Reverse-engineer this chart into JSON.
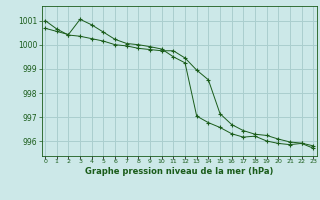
{
  "title": "Graphe pression niveau de la mer (hPa)",
  "background_color": "#cce8e8",
  "grid_color": "#aacece",
  "line_color": "#1a5c1a",
  "x_labels": [
    "0",
    "1",
    "2",
    "3",
    "4",
    "5",
    "6",
    "7",
    "8",
    "9",
    "10",
    "11",
    "12",
    "13",
    "14",
    "15",
    "16",
    "17",
    "18",
    "19",
    "20",
    "21",
    "22",
    "23"
  ],
  "ylim": [
    995.4,
    1001.6
  ],
  "yticks": [
    996,
    997,
    998,
    999,
    1000,
    1001
  ],
  "series1": [
    1001.0,
    1000.65,
    1000.4,
    1000.35,
    1000.25,
    1000.15,
    1000.0,
    999.95,
    999.85,
    999.8,
    999.75,
    999.75,
    999.45,
    998.95,
    998.55,
    997.15,
    996.7,
    996.45,
    996.3,
    996.25,
    996.1,
    995.98,
    995.93,
    995.82
  ],
  "series2": [
    1000.68,
    1000.55,
    1000.42,
    1001.05,
    1000.82,
    1000.52,
    1000.22,
    1000.05,
    1000.0,
    999.92,
    999.82,
    999.5,
    999.25,
    997.05,
    996.78,
    996.58,
    996.32,
    996.18,
    996.22,
    996.02,
    995.92,
    995.87,
    995.92,
    995.72
  ]
}
